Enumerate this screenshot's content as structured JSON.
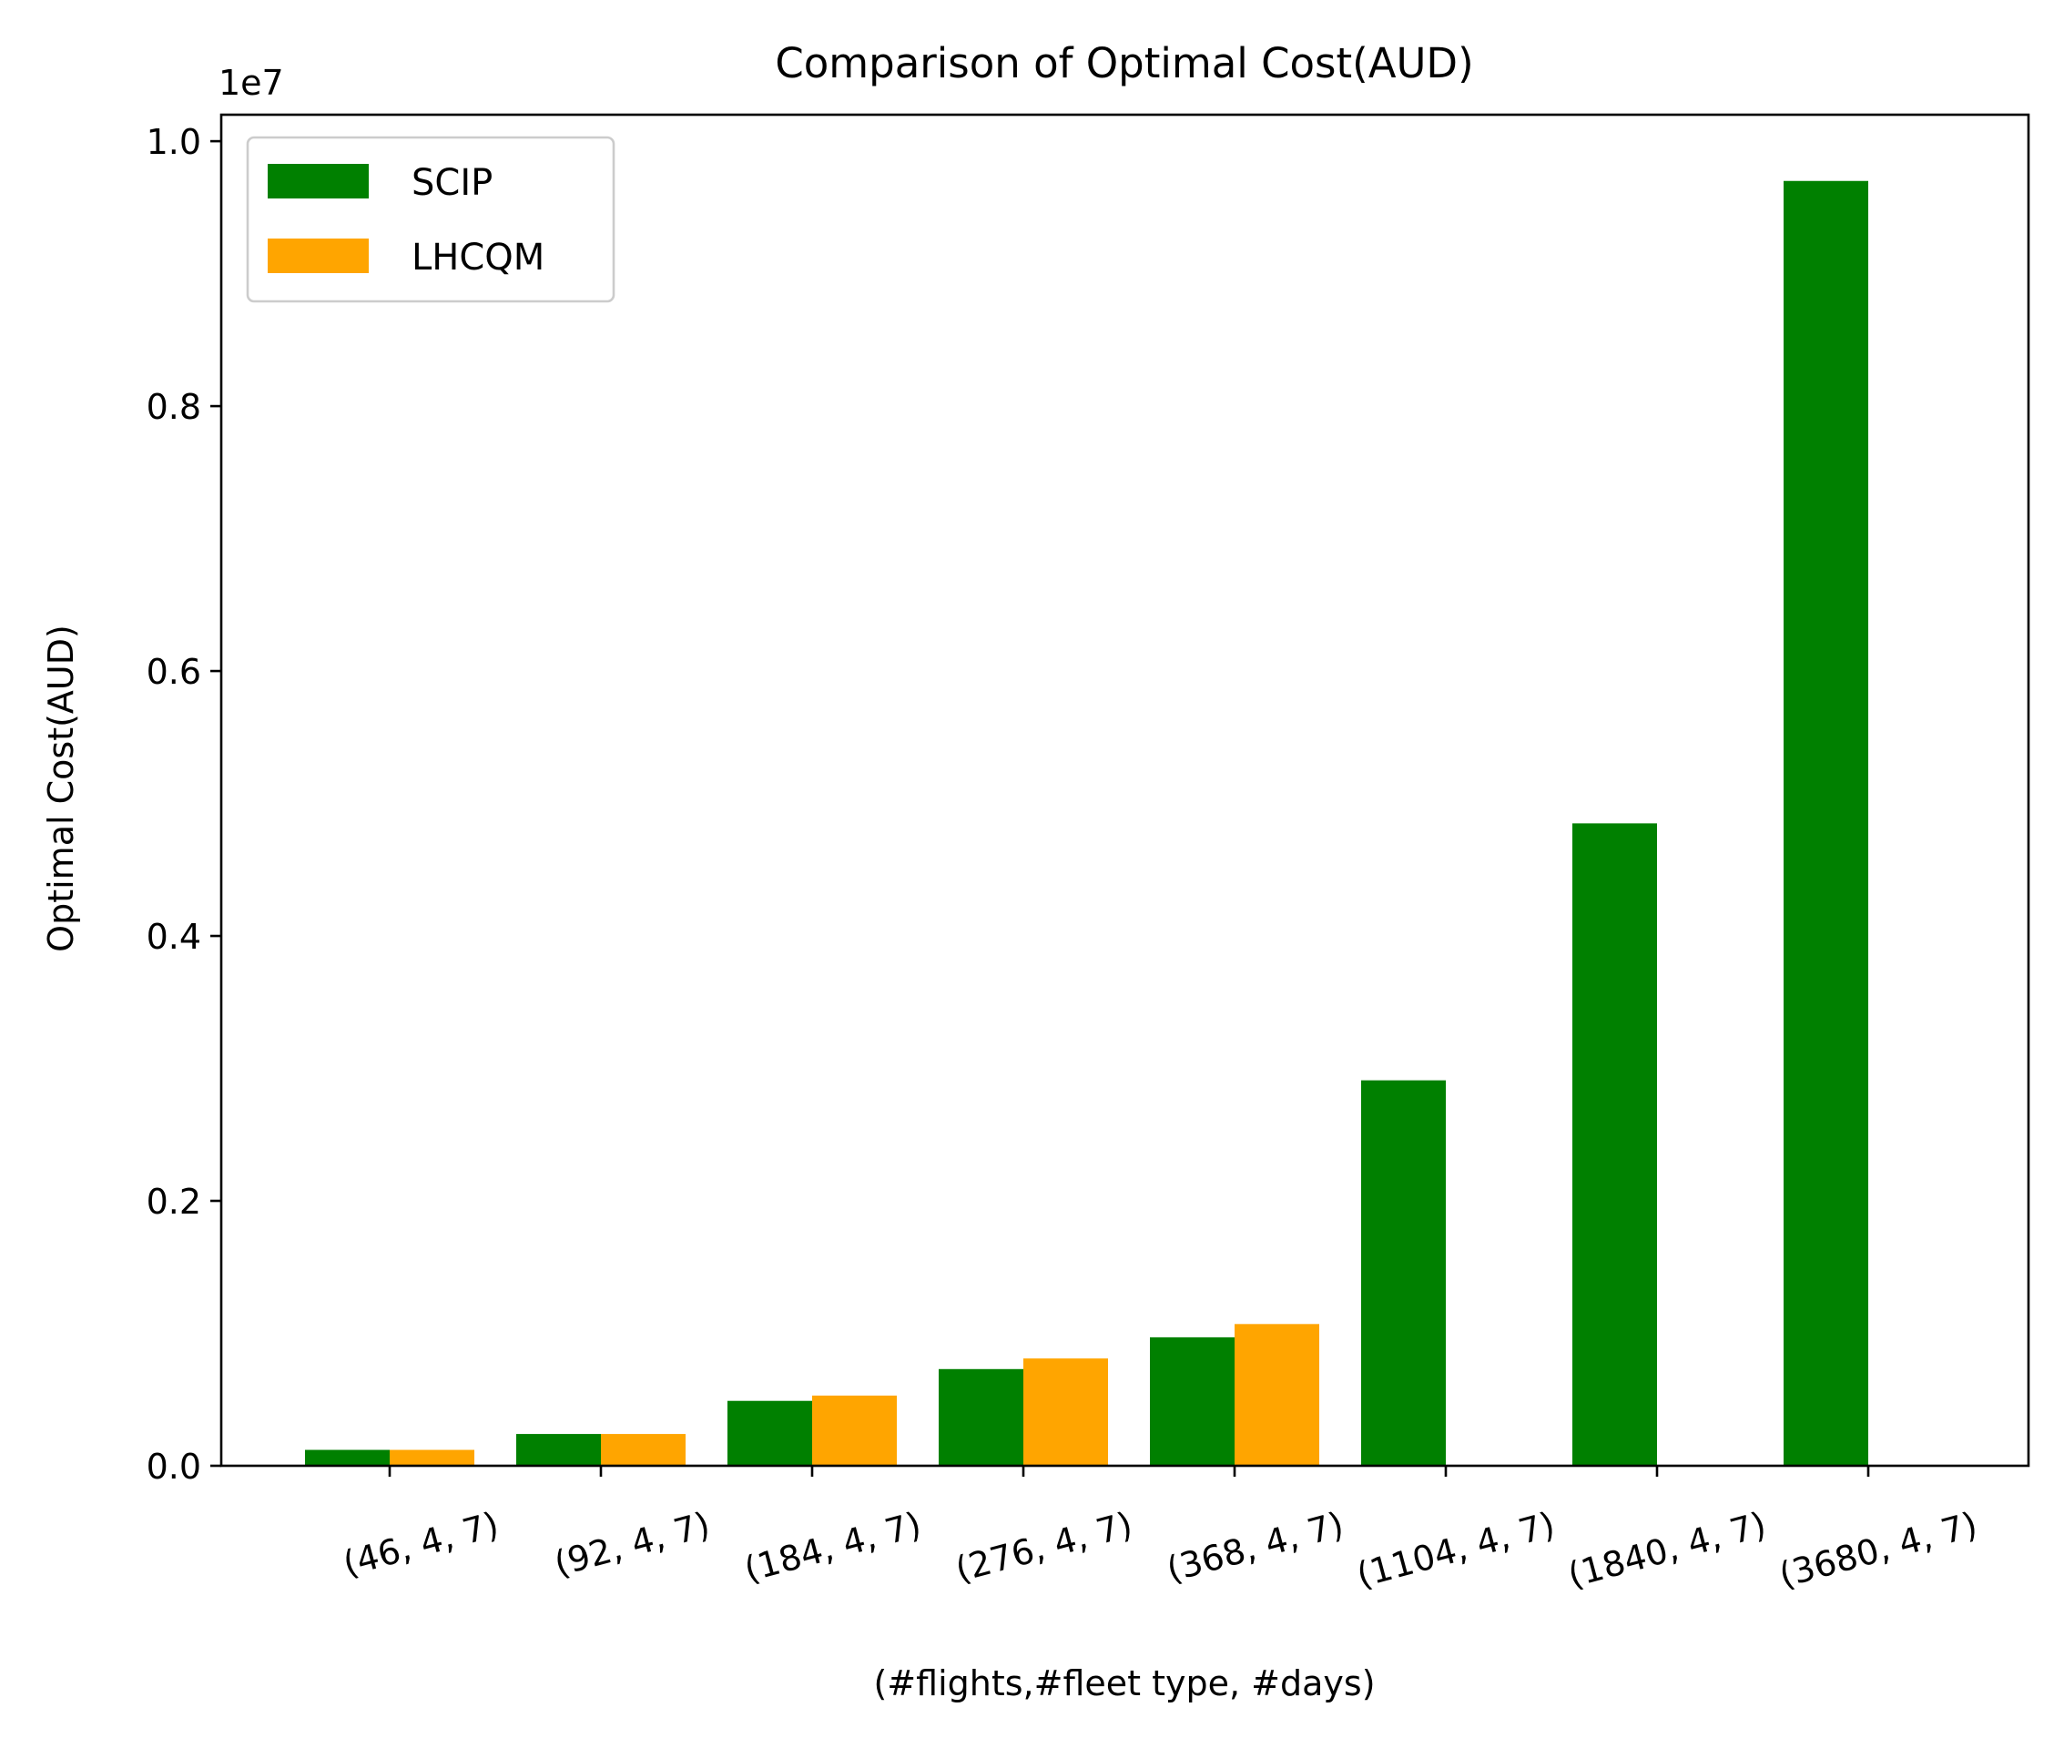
{
  "chart_data": {
    "type": "bar",
    "title": "Comparison of Optimal Cost(AUD)",
    "xlabel": "(#flights,#fleet type, #days)",
    "ylabel": "Optimal Cost(AUD)",
    "y_scale_label": "1e7",
    "y_scale": 10000000,
    "ylim": [
      0,
      10200000
    ],
    "yticks": [
      0,
      2000000,
      4000000,
      6000000,
      8000000,
      10000000
    ],
    "ytick_labels": [
      "0.0",
      "0.2",
      "0.4",
      "0.6",
      "0.8",
      "1.0"
    ],
    "categories": [
      "(46, 4, 7)",
      "(92, 4, 7)",
      "(184, 4, 7)",
      "(276, 4, 7)",
      "(368, 4, 7)",
      "(1104, 4, 7)",
      "(1840, 4, 7)",
      "(3680, 4, 7)"
    ],
    "series": [
      {
        "name": "SCIP",
        "color": "#008000",
        "values": [
          120000,
          240000,
          490000,
          730000,
          970000,
          2910000,
          4850000,
          9700000
        ]
      },
      {
        "name": "LHCQM",
        "color": "#FFA500",
        "values": [
          120000,
          240000,
          530000,
          810000,
          1070000,
          0,
          0,
          0
        ]
      }
    ],
    "legend_position": "top-left",
    "grid": false
  }
}
